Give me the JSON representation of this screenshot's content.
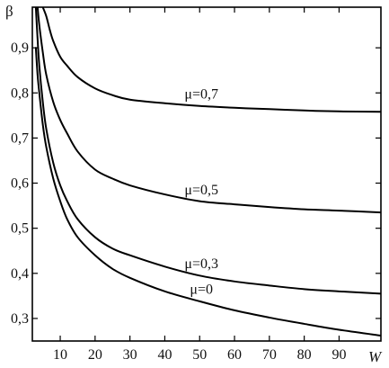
{
  "chart_data": {
    "type": "line",
    "xlabel": "W",
    "ylabel": "β",
    "xlim": [
      2,
      102
    ],
    "ylim": [
      0.25,
      0.99
    ],
    "xticks": [
      10,
      20,
      30,
      40,
      50,
      60,
      70,
      80,
      90
    ],
    "xtick_labels": [
      "10",
      "20",
      "30",
      "40",
      "50",
      "60",
      "70",
      "80",
      "90"
    ],
    "yticks": [
      0.3,
      0.4,
      0.5,
      0.6,
      0.7,
      0.8,
      0.9
    ],
    "ytick_labels": [
      "0,3",
      "0,4",
      "0,5",
      "0,6",
      "0,7",
      "0,8",
      "0,9"
    ],
    "grid": false,
    "series": [
      {
        "name": "μ=0,7",
        "x": [
          5,
          6,
          7,
          8,
          10,
          12,
          15,
          20,
          25,
          30,
          40,
          50,
          60,
          70,
          80,
          90,
          102
        ],
        "y": [
          0.99,
          0.97,
          0.94,
          0.915,
          0.88,
          0.86,
          0.835,
          0.81,
          0.795,
          0.785,
          0.777,
          0.771,
          0.767,
          0.764,
          0.761,
          0.759,
          0.758
        ]
      },
      {
        "name": "μ=0,5",
        "x": [
          3.5,
          4,
          5,
          6,
          8,
          10,
          12,
          15,
          20,
          25,
          30,
          40,
          50,
          60,
          70,
          80,
          90,
          102
        ],
        "y": [
          0.99,
          0.95,
          0.89,
          0.84,
          0.78,
          0.74,
          0.71,
          0.67,
          0.63,
          0.61,
          0.595,
          0.575,
          0.56,
          0.553,
          0.547,
          0.542,
          0.539,
          0.535
        ]
      },
      {
        "name": "μ=0,3",
        "x": [
          3,
          3.5,
          4,
          5,
          6,
          8,
          10,
          12,
          15,
          20,
          25,
          30,
          40,
          50,
          60,
          70,
          80,
          90,
          102
        ],
        "y": [
          0.99,
          0.92,
          0.86,
          0.78,
          0.72,
          0.645,
          0.595,
          0.56,
          0.52,
          0.48,
          0.455,
          0.44,
          0.415,
          0.395,
          0.382,
          0.373,
          0.365,
          0.36,
          0.355
        ]
      },
      {
        "name": "μ=0",
        "x": [
          3,
          3.5,
          4,
          5,
          6,
          8,
          10,
          12,
          15,
          20,
          25,
          30,
          40,
          50,
          60,
          70,
          80,
          90,
          102
        ],
        "y": [
          0.9,
          0.84,
          0.8,
          0.73,
          0.68,
          0.61,
          0.56,
          0.52,
          0.48,
          0.44,
          0.41,
          0.39,
          0.36,
          0.338,
          0.318,
          0.302,
          0.288,
          0.275,
          0.262
        ]
      }
    ]
  }
}
